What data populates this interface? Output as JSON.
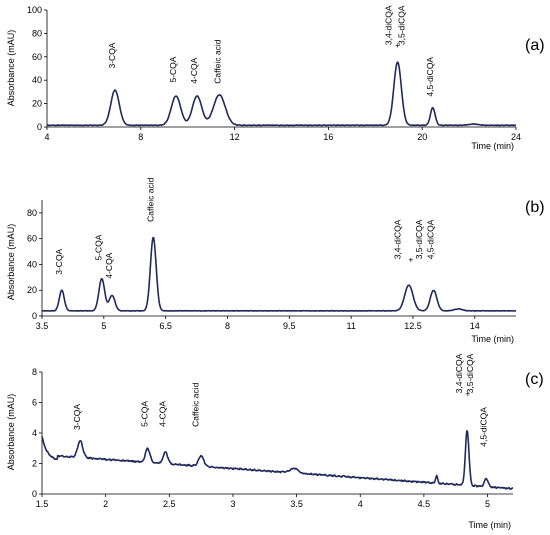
{
  "chart_data": [
    {
      "type": "line",
      "panel_label": "(a)",
      "xlabel": "Time (min)",
      "ylabel": "Absorbance (mAU)",
      "xlim": [
        4,
        24
      ],
      "ylim": [
        0,
        100
      ],
      "xticks": [
        4,
        8,
        12,
        16,
        20,
        24
      ],
      "xtick_labels": [
        "4",
        "8",
        "12",
        "16",
        "20",
        "24"
      ],
      "yticks": [
        0,
        20,
        40,
        60,
        80,
        100
      ],
      "ytick_labels": [
        "0",
        "20",
        "40",
        "60",
        "80",
        "100"
      ],
      "color": "#1f2a5c",
      "baseline": 1.5,
      "peaks": [
        {
          "x": 6.9,
          "height": 30,
          "width": 0.18
        },
        {
          "x": 9.5,
          "height": 25,
          "width": 0.2
        },
        {
          "x": 10.4,
          "height": 25,
          "width": 0.2
        },
        {
          "x": 11.35,
          "height": 26,
          "width": 0.25
        },
        {
          "x": 18.95,
          "height": 54,
          "width": 0.16
        },
        {
          "x": 20.45,
          "height": 15,
          "width": 0.1
        },
        {
          "x": 22.2,
          "height": 1.0,
          "width": 0.2
        }
      ],
      "annotations": [
        {
          "text": "3-CQA",
          "x": 6.9,
          "y": 50
        },
        {
          "text": "5-CQA",
          "x": 9.5,
          "y": 38
        },
        {
          "text": "4-CQA",
          "x": 10.4,
          "y": 37
        },
        {
          "text": "Caffeic acid",
          "x": 11.4,
          "y": 37
        },
        {
          "text": "3,4-diCQA",
          "x": 18.7,
          "y": 70
        },
        {
          "text": "+",
          "x": 18.95,
          "y": 70
        },
        {
          "text": "3,5-diCQA",
          "x": 19.25,
          "y": 70
        },
        {
          "text": "4,5-diCQA",
          "x": 20.45,
          "y": 26
        }
      ]
    },
    {
      "type": "line",
      "panel_label": "(b)",
      "xlabel": "Time (min)",
      "ylabel": "Absorbance (mAU)",
      "xlim": [
        3.5,
        15
      ],
      "ylim": [
        0,
        90
      ],
      "xticks": [
        3.5,
        5,
        6.5,
        8,
        9.5,
        11,
        12.5,
        14
      ],
      "xtick_labels": [
        "3.5",
        "5",
        "6.5",
        "8",
        "9.5",
        "11",
        "12.5",
        "14"
      ],
      "yticks": [
        0,
        20,
        40,
        60,
        80
      ],
      "ytick_labels": [
        "0",
        "20",
        "40",
        "60",
        "80"
      ],
      "color": "#1f2a5c",
      "baseline": 4,
      "peaks": [
        {
          "x": 3.98,
          "height": 16,
          "width": 0.06
        },
        {
          "x": 4.95,
          "height": 25,
          "width": 0.07
        },
        {
          "x": 5.2,
          "height": 12,
          "width": 0.07
        },
        {
          "x": 6.2,
          "height": 57,
          "width": 0.07
        },
        {
          "x": 12.4,
          "height": 20,
          "width": 0.1
        },
        {
          "x": 13.0,
          "height": 16,
          "width": 0.08
        },
        {
          "x": 13.6,
          "height": 1.5,
          "width": 0.1
        }
      ],
      "annotations": [
        {
          "text": "3-CQA",
          "x": 3.98,
          "y": 32
        },
        {
          "text": "5-CQA",
          "x": 4.95,
          "y": 43
        },
        {
          "text": "4-CQA",
          "x": 5.2,
          "y": 29
        },
        {
          "text": "Caffeic acid",
          "x": 6.2,
          "y": 73
        },
        {
          "text": "3,4-diCQA",
          "x": 12.2,
          "y": 44
        },
        {
          "text": "+",
          "x": 12.45,
          "y": 44
        },
        {
          "text": "3,5-diCQA",
          "x": 12.72,
          "y": 44
        },
        {
          "text": "4,5-diCQA",
          "x": 13.0,
          "y": 44
        }
      ]
    },
    {
      "type": "line",
      "panel_label": "(c)",
      "xlabel": "Time (min)",
      "ylabel": "Absorbance (mAU)",
      "xlim": [
        1.5,
        5.2
      ],
      "ylim": [
        0,
        8
      ],
      "xticks": [
        1.5,
        2,
        2.5,
        3,
        3.5,
        4,
        4.5,
        5
      ],
      "xtick_labels": [
        "1.5",
        "2",
        "2.5",
        "3",
        "3.5",
        "4",
        "4.5",
        "5"
      ],
      "yticks": [
        0,
        2,
        4,
        6,
        8
      ],
      "ytick_labels": [
        "0",
        "2",
        "4",
        "6",
        "8"
      ],
      "color": "#1f2a5c",
      "peaks": [
        {
          "x": 1.8,
          "height": 1.1,
          "width": 0.02
        },
        {
          "x": 2.33,
          "height": 0.9,
          "width": 0.018
        },
        {
          "x": 2.47,
          "height": 0.75,
          "width": 0.018
        },
        {
          "x": 2.75,
          "height": 0.7,
          "width": 0.02
        },
        {
          "x": 3.48,
          "height": 0.3,
          "width": 0.03
        },
        {
          "x": 4.6,
          "height": 0.5,
          "width": 0.008
        },
        {
          "x": 4.84,
          "height": 3.6,
          "width": 0.014
        },
        {
          "x": 4.99,
          "height": 0.55,
          "width": 0.014
        }
      ],
      "annotations": [
        {
          "text": "3-CQA",
          "x": 1.8,
          "y": 4.2
        },
        {
          "text": "5-CQA",
          "x": 2.33,
          "y": 4.4
        },
        {
          "text": "4-CQA",
          "x": 2.47,
          "y": 4.4
        },
        {
          "text": "Caffeic acid",
          "x": 2.73,
          "y": 4.4
        },
        {
          "text": "3,4-diCQA",
          "x": 4.8,
          "y": 6.6
        },
        {
          "text": "+",
          "x": 4.845,
          "y": 6.6
        },
        {
          "text": "3,5-diCQA",
          "x": 4.885,
          "y": 6.6
        },
        {
          "text": "4,5-diCQA",
          "x": 4.99,
          "y": 3.1
        }
      ]
    }
  ]
}
